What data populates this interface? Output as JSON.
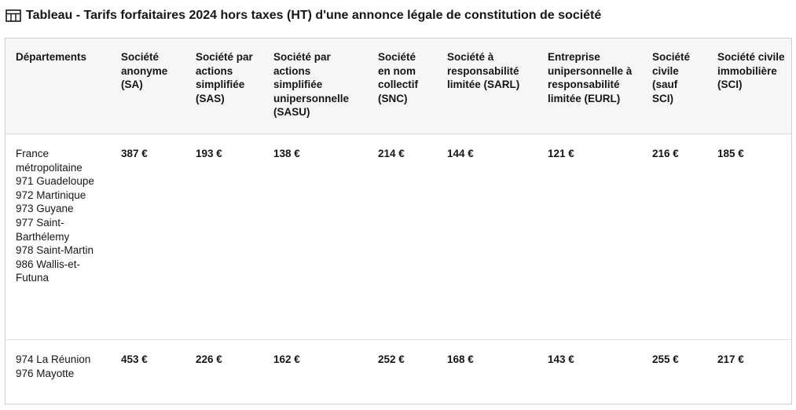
{
  "caption": {
    "icon": "table-icon",
    "text": "Tableau - Tarifs forfaitaires 2024 hors taxes (HT) d'une annonce légale de constitution de société"
  },
  "table": {
    "headers": [
      "Départements",
      "Société anonyme (SA)",
      "Société par actions simplifiée (SAS)",
      "Société par actions simplifiée unipersonnelle (SASU)",
      "Société en nom collectif (SNC)",
      "Société à responsabilité limitée (SARL)",
      "Entreprise unipersonnelle à responsabilité limitée (EURL)",
      "Société civile (sauf SCI)",
      "Société civile immobilière (SCI)"
    ],
    "rows": [
      {
        "departments": [
          "France métropolitaine",
          "971 Guadeloupe",
          "972 Martinique",
          "973 Guyane",
          "977 Saint-Barthélemy",
          "978 Saint-Martin",
          "986 Wallis-et-Futuna"
        ],
        "prices": [
          "387 €",
          "193 €",
          "138 €",
          "214 €",
          "144 €",
          "121 €",
          "216 €",
          "185 €"
        ]
      },
      {
        "departments": [
          "974 La Réunion",
          "976 Mayotte"
        ],
        "prices": [
          "453 €",
          "226 €",
          "162 €",
          "252 €",
          "168 €",
          "143 €",
          "255 €",
          "217 €"
        ]
      }
    ]
  }
}
